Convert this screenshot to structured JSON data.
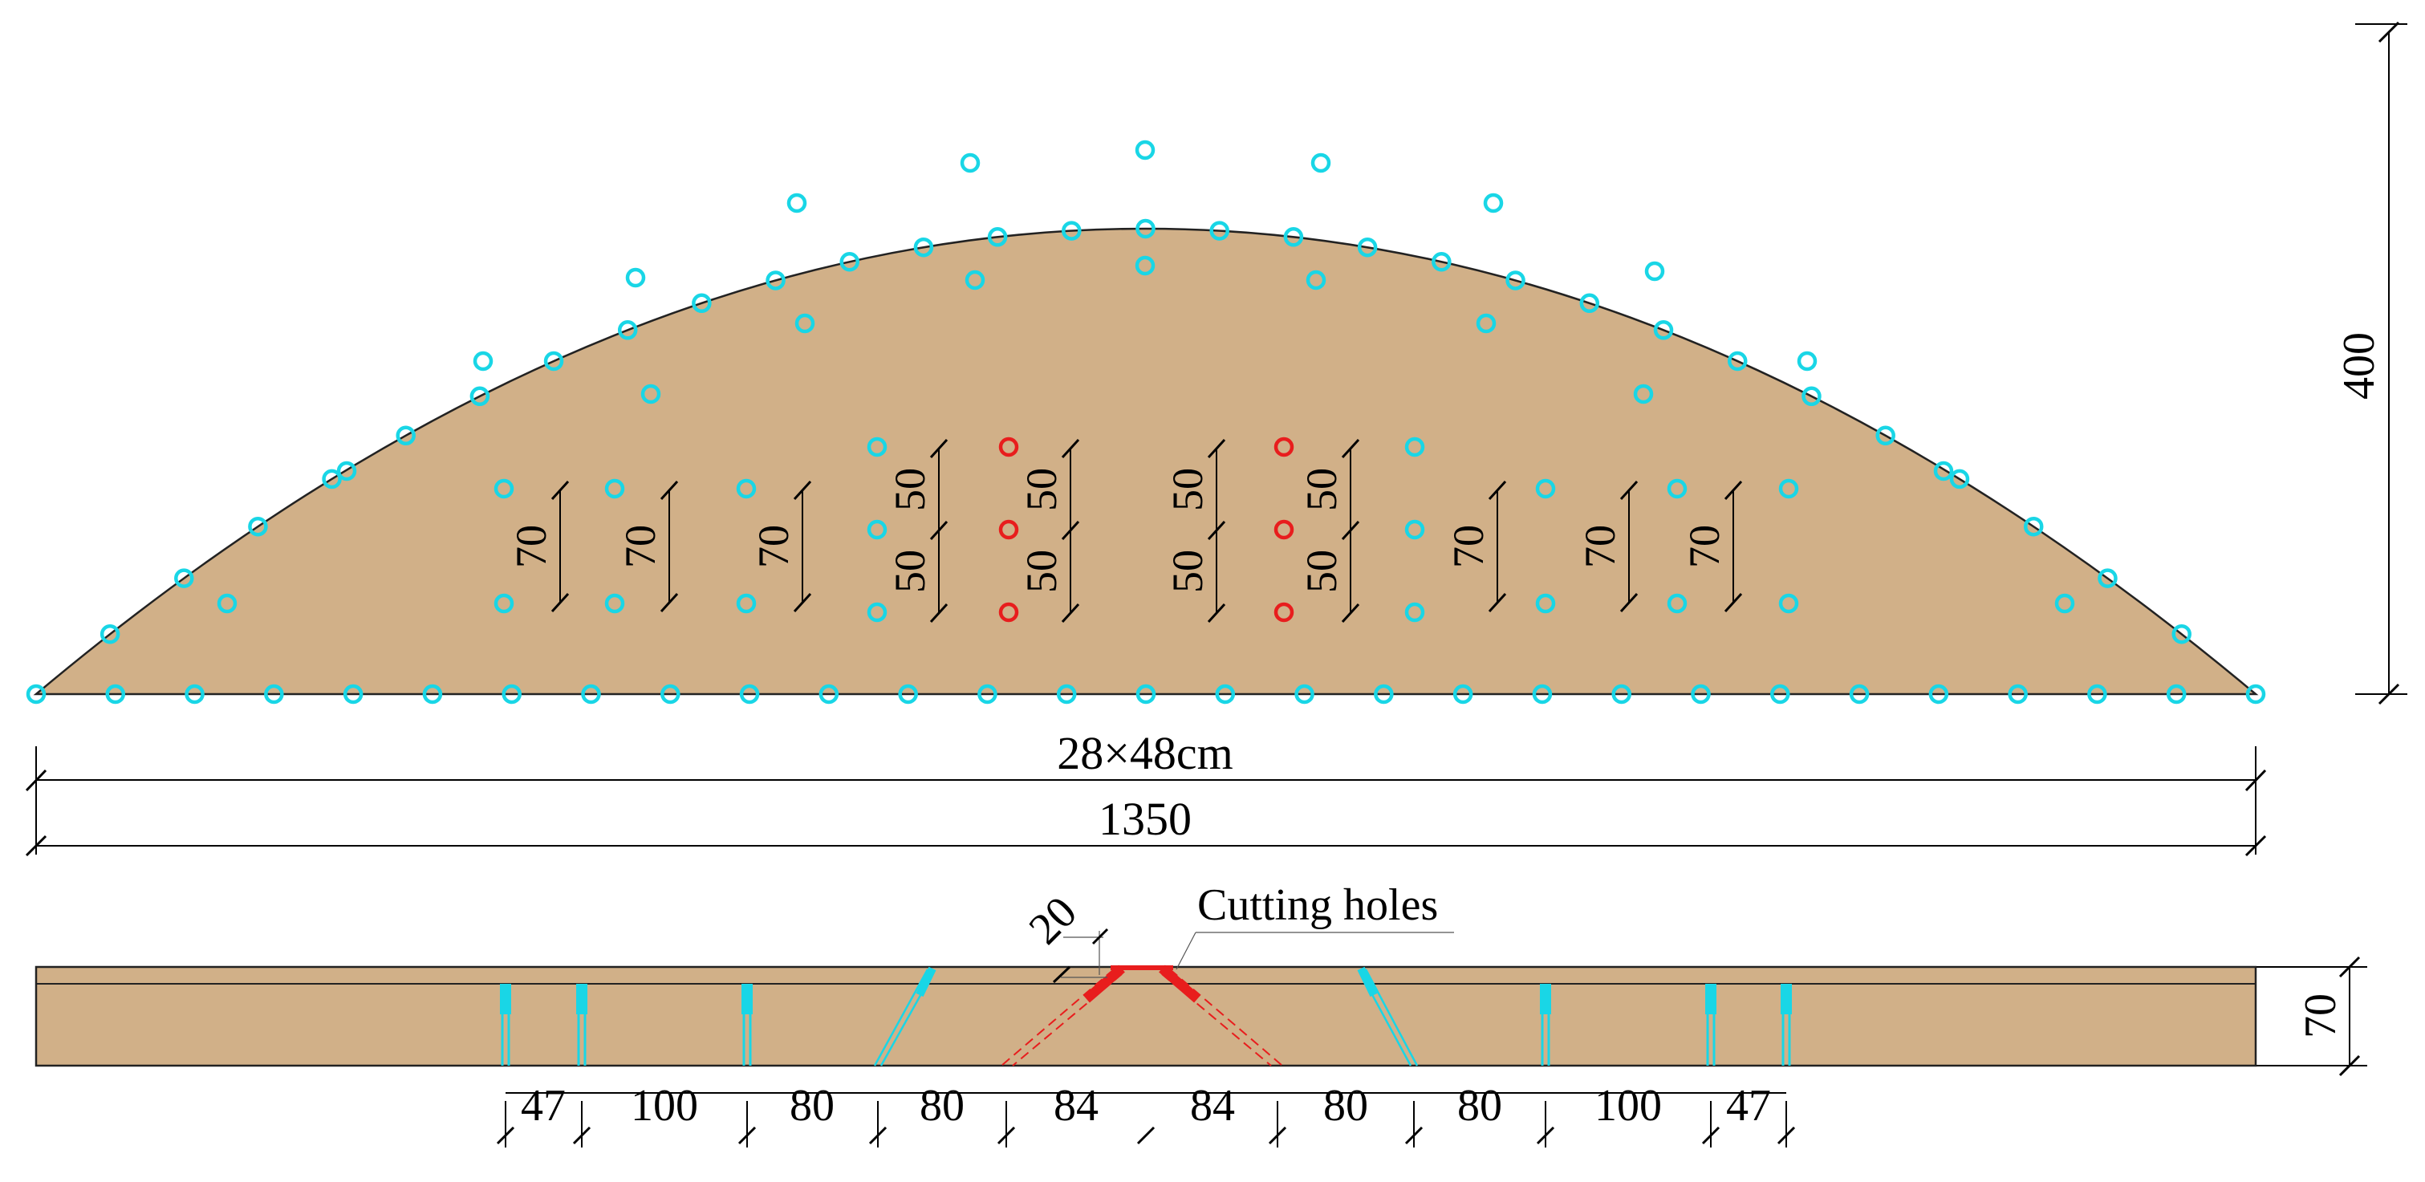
{
  "colors": {
    "rock": "#d1b088",
    "hole_peripheral": "#19d6e6",
    "hole_cutting": "#e81d1d",
    "outline": "#222222",
    "dimension": "#000000"
  },
  "face_view": {
    "height_label": "400",
    "width_label": "1350",
    "section_label": "28×48cm",
    "row_spacing_labels": [
      "70",
      "70",
      "70",
      "50",
      "50",
      "50",
      "50",
      "50",
      "50",
      "50",
      "50",
      "70",
      "70",
      "70"
    ]
  },
  "section_view": {
    "callout_label": "Cutting holes",
    "angle_offset_label": "20",
    "depth_label": "70",
    "spacing_labels": [
      "47",
      "100",
      "80",
      "80",
      "84",
      "84",
      "80",
      "80",
      "100",
      "47"
    ]
  }
}
